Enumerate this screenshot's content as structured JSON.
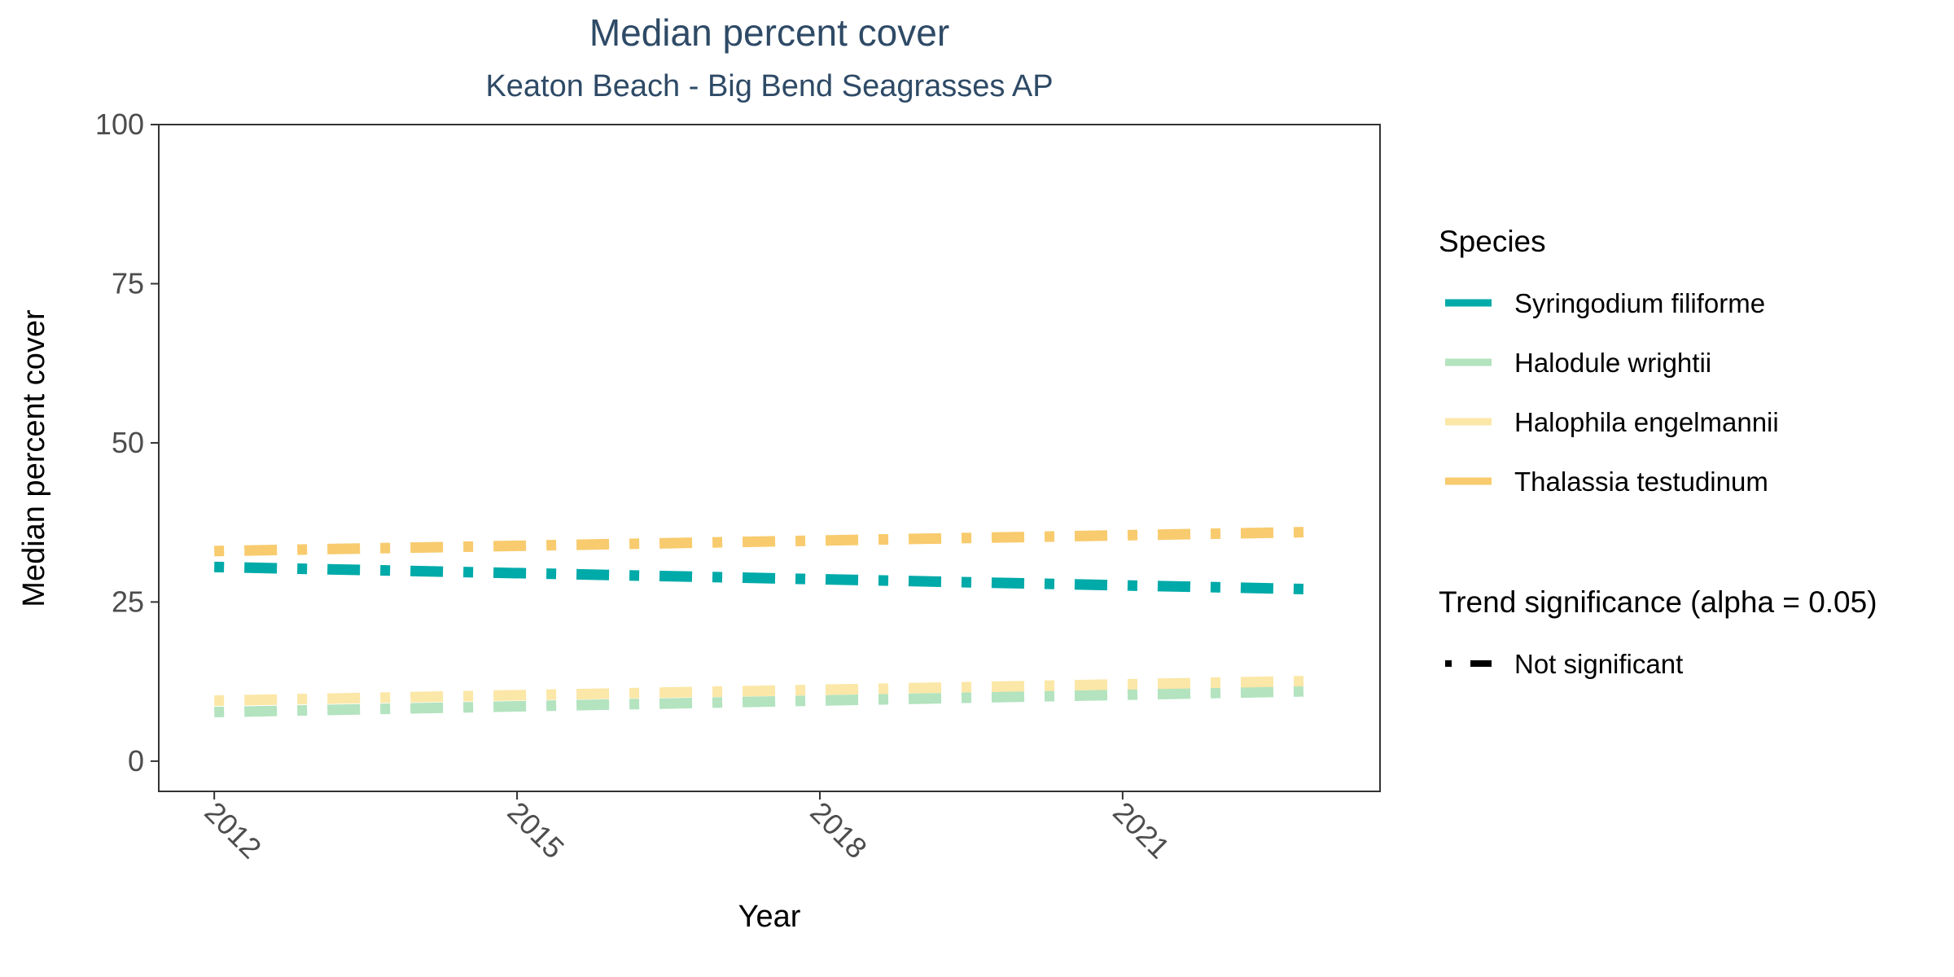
{
  "chart_data": {
    "type": "line",
    "title": "Median percent cover",
    "subtitle": "Keaton Beach - Big Bend Seagrasses AP",
    "xlabel": "Year",
    "ylabel": "Median percent cover",
    "xlim": [
      2011.45,
      2023.55
    ],
    "ylim": [
      -4.75,
      100
    ],
    "xticks": [
      "2012",
      "2015",
      "2018",
      "2021"
    ],
    "yticks": [
      "0",
      "25",
      "50",
      "75",
      "100"
    ],
    "grid": false,
    "legend_placement": "right",
    "series": [
      {
        "name": "Syringodium filiforme",
        "color": "#00aaa9",
        "linetype": "dotdash",
        "x": [
          2012,
          2022.9
        ],
        "values": [
          30.5,
          27.0
        ]
      },
      {
        "name": "Halodule wrightii",
        "color": "#b3e3bf",
        "linetype": "dotdash",
        "x": [
          2012,
          2022.9
        ],
        "values": [
          7.7,
          11.0
        ]
      },
      {
        "name": "Halophila engelmannii",
        "color": "#fbe7a7",
        "linetype": "dotdash",
        "x": [
          2012,
          2022.9
        ],
        "values": [
          9.5,
          12.6
        ]
      },
      {
        "name": "Thalassia testudinum",
        "color": "#f8cb6e",
        "linetype": "dotdash",
        "x": [
          2012,
          2022.9
        ],
        "values": [
          33.0,
          36.0
        ]
      }
    ],
    "legend": {
      "species_title": "Species",
      "trend_title": "Trend significance (alpha = 0.05)",
      "trend_entries": [
        "Not significant"
      ]
    }
  }
}
